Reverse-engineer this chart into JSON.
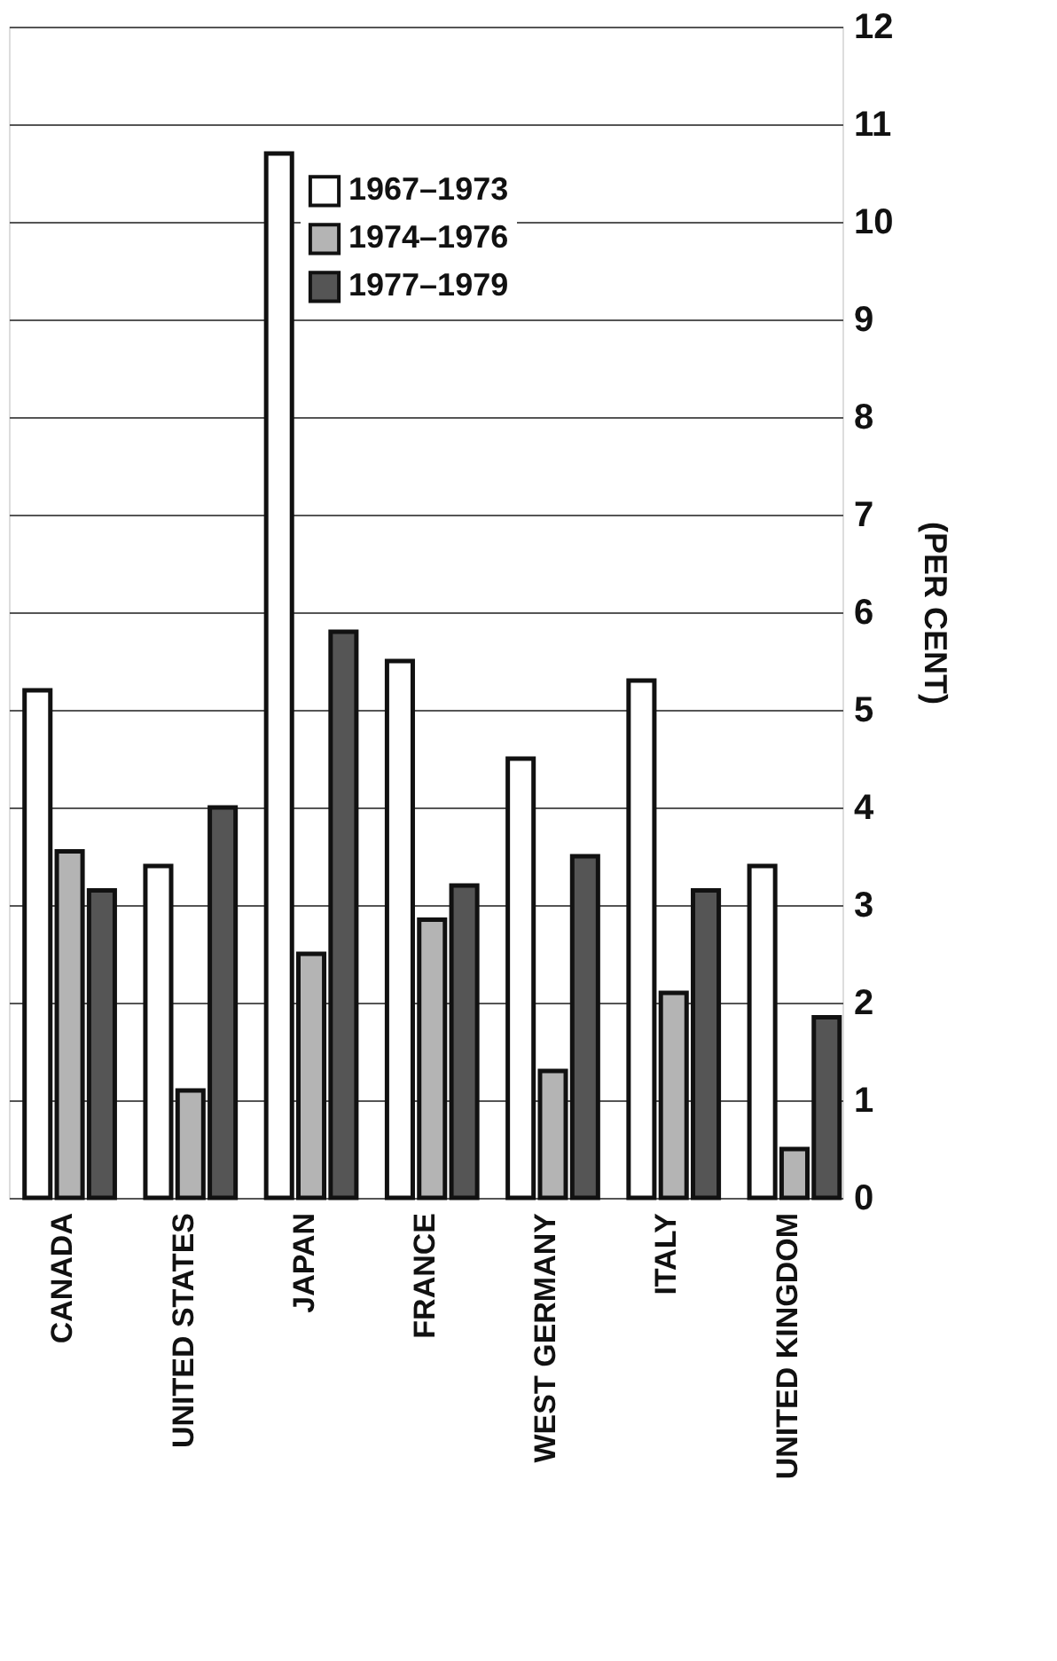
{
  "chart_data": {
    "type": "bar",
    "ylabel": "(PER CENT)",
    "categories": [
      "CANADA",
      "UNITED STATES",
      "JAPAN",
      "FRANCE",
      "WEST GERMANY",
      "ITALY",
      "UNITED KINGDOM"
    ],
    "series": [
      {
        "name": "1967–1973",
        "color": "#ffffff",
        "values": [
          5.2,
          3.4,
          10.7,
          5.5,
          4.5,
          5.3,
          3.4
        ]
      },
      {
        "name": "1974–1976",
        "color": "#b4b4b4",
        "values": [
          3.55,
          1.1,
          2.5,
          2.85,
          1.3,
          2.1,
          0.5
        ]
      },
      {
        "name": "1977–1979",
        "color": "#555555",
        "values": [
          3.15,
          4.0,
          5.8,
          3.2,
          3.5,
          3.15,
          1.85
        ]
      }
    ],
    "ylim": [
      0,
      12
    ],
    "yticks": [
      0,
      1,
      2,
      3,
      4,
      5,
      6,
      7,
      8,
      9,
      10,
      11,
      12
    ],
    "grid": "y",
    "legend": "top"
  }
}
